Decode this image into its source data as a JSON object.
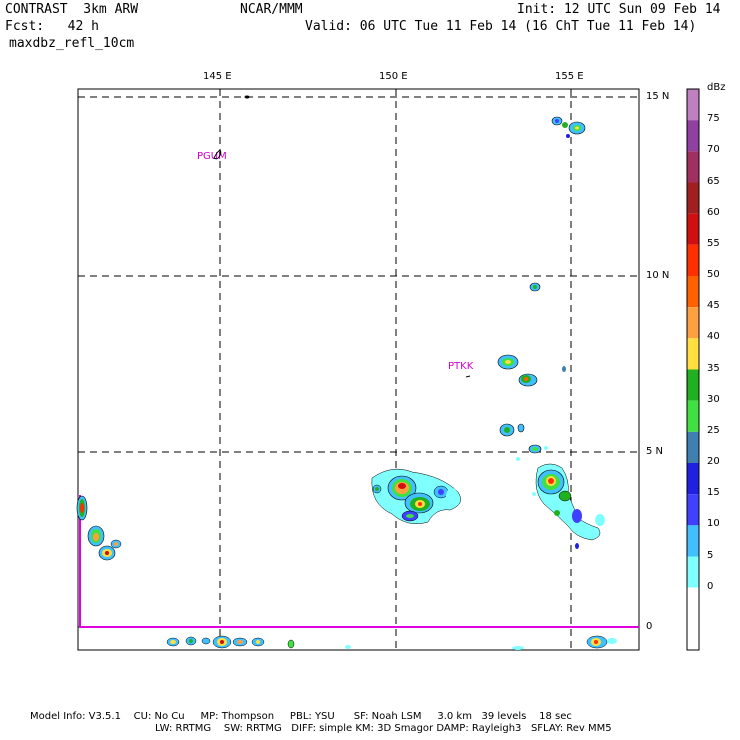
{
  "header": {
    "line1_left": "CONTRAST  3km ARW",
    "line1_mid": "NCAR/MMM",
    "line1_right": "Init: 12 UTC Sun 09 Feb 14",
    "line2_left": "Fcst:   42 h",
    "line2_right": "Valid: 06 UTC Tue 11 Feb 14 (16 ChT Tue 11 Feb 14)",
    "line3_left": "maxdbz_refl_10cm"
  },
  "map": {
    "lon_labels": [
      "145 E",
      "150 E",
      "155 E"
    ],
    "lat_labels": [
      "15 N",
      "10 N",
      "5 N",
      "0"
    ],
    "stations": [
      {
        "id": "PGUM"
      },
      {
        "id": "PTKK"
      }
    ]
  },
  "colorbar": {
    "unit": "dBz",
    "labels": [
      "75",
      "70",
      "65",
      "60",
      "55",
      "50",
      "45",
      "40",
      "35",
      "30",
      "25",
      "20",
      "15",
      "10",
      "5",
      "0"
    ],
    "colors": [
      "#c080c0",
      "#9040a0",
      "#a03060",
      "#a02020",
      "#d01010",
      "#ff3000",
      "#ff6000",
      "#ffa040",
      "#ffe040",
      "#20b020",
      "#40e040",
      "#4080b0",
      "#2020e0",
      "#4040ff",
      "#40c0ff",
      "#80ffff",
      "#ffffff",
      "#ffffff"
    ]
  },
  "footer": {
    "line1": "Model Info: V3.5.1    CU: No Cu     MP: Thompson     PBL: YSU      SF: Noah LSM     3.0 km   39 levels    18 sec",
    "line2": "LW: RRTMG    SW: RRTMG   DIFF: simple KM: 3D Smagor DAMP: Rayleigh3   SFLAY: Rev MM5"
  }
}
